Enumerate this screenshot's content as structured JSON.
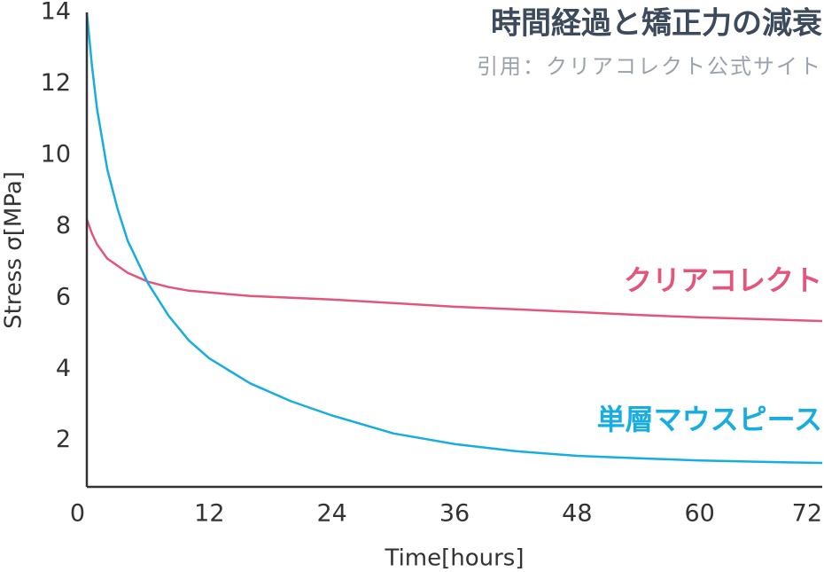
{
  "chart_data": {
    "type": "line",
    "title": "時間経過と矯正力の減衰",
    "subtitle": "引用：クリアコレクト公式サイト",
    "x_label": "Time[hours]",
    "y_label": "Stress σ[MPa]",
    "x": [
      0,
      0.5,
      1,
      2,
      3,
      4,
      6,
      8,
      10,
      12,
      16,
      20,
      24,
      30,
      36,
      42,
      48,
      54,
      60,
      66,
      72
    ],
    "series": [
      {
        "name": "クリアコレクト",
        "color": "#e5557a",
        "values": [
          8.2,
          7.8,
          7.5,
          7.1,
          6.9,
          6.7,
          6.45,
          6.3,
          6.2,
          6.15,
          6.05,
          6.0,
          5.95,
          5.85,
          5.75,
          5.68,
          5.6,
          5.52,
          5.45,
          5.4,
          5.35
        ]
      },
      {
        "name": "単層マウスピース",
        "color": "#16aee0",
        "values": [
          14,
          12.5,
          11.3,
          9.6,
          8.5,
          7.6,
          6.4,
          5.5,
          4.8,
          4.3,
          3.6,
          3.1,
          2.7,
          2.2,
          1.9,
          1.7,
          1.57,
          1.5,
          1.44,
          1.4,
          1.37
        ]
      }
    ],
    "xlim": [
      0,
      72
    ],
    "xticks": [
      0,
      12,
      24,
      36,
      48,
      60,
      72
    ],
    "ylim": [
      0.7,
      14
    ],
    "yticks": [
      2,
      4,
      6,
      8,
      10,
      12,
      14
    ],
    "grid": false
  }
}
